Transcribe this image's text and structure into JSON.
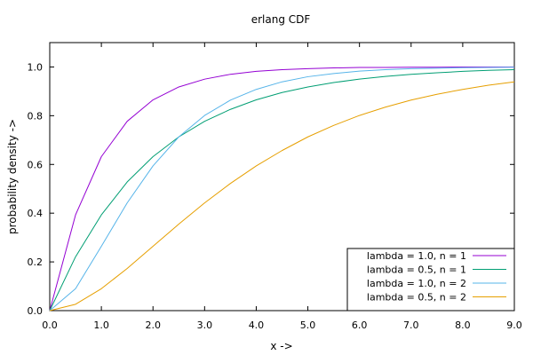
{
  "chart_data": {
    "type": "line",
    "title": "erlang CDF",
    "xlabel": "x ->",
    "ylabel": "probability density ->",
    "xlim": [
      0.0,
      9.0
    ],
    "ylim": [
      0.0,
      1.1
    ],
    "x_ticks": [
      "0.0",
      "1.0",
      "2.0",
      "3.0",
      "4.0",
      "5.0",
      "6.0",
      "7.0",
      "8.0",
      "9.0"
    ],
    "y_ticks": [
      "0.0",
      "0.2",
      "0.4",
      "0.6",
      "0.8",
      "1.0"
    ],
    "grid": false,
    "legend_position": "bottom-right",
    "x": [
      0,
      0.5,
      1,
      1.5,
      2,
      2.5,
      3,
      3.5,
      4,
      4.5,
      5,
      5.5,
      6,
      6.5,
      7,
      7.5,
      8,
      8.5,
      9
    ],
    "series": [
      {
        "name": "lambda = 1.0, n = 1",
        "color": "#9400d3",
        "values": [
          0.0,
          0.393,
          0.632,
          0.777,
          0.865,
          0.918,
          0.95,
          0.97,
          0.982,
          0.989,
          0.993,
          0.996,
          0.998,
          0.998,
          0.999,
          0.999,
          1.0,
          1.0,
          1.0
        ]
      },
      {
        "name": "lambda = 0.5, n = 1",
        "color": "#009e73",
        "values": [
          0.0,
          0.221,
          0.393,
          0.528,
          0.632,
          0.713,
          0.777,
          0.826,
          0.865,
          0.895,
          0.918,
          0.936,
          0.95,
          0.961,
          0.97,
          0.976,
          0.982,
          0.986,
          0.989
        ]
      },
      {
        "name": "lambda = 1.0, n = 2",
        "color": "#56b4e9",
        "values": [
          0.0,
          0.09,
          0.264,
          0.442,
          0.594,
          0.713,
          0.801,
          0.864,
          0.908,
          0.939,
          0.96,
          0.973,
          0.983,
          0.989,
          0.993,
          0.995,
          0.997,
          0.998,
          0.999
        ]
      },
      {
        "name": "lambda = 0.5, n = 2",
        "color": "#e69f00",
        "values": [
          0.0,
          0.026,
          0.09,
          0.173,
          0.264,
          0.355,
          0.442,
          0.522,
          0.594,
          0.657,
          0.713,
          0.76,
          0.801,
          0.835,
          0.864,
          0.888,
          0.908,
          0.925,
          0.939
        ]
      }
    ]
  }
}
